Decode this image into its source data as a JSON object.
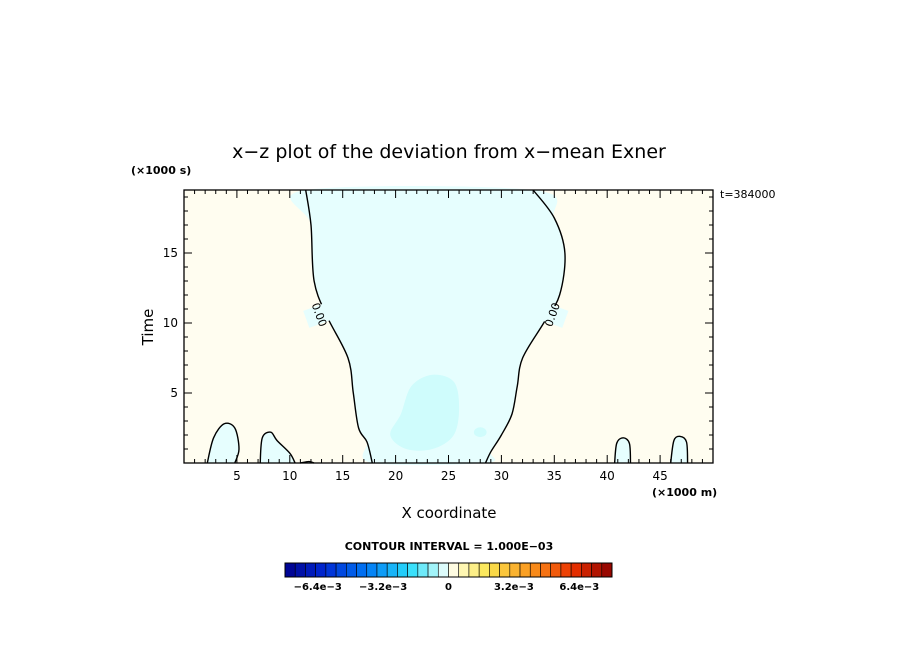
{
  "chart_data": {
    "type": "contour",
    "title": "x−z plot of the deviation from x−mean Exner",
    "xlabel": "X coordinate",
    "ylabel": "Time",
    "x_unit": "(×1000 m)",
    "y_unit": "(×1000 s)",
    "time_label": "t=384000",
    "xlim": [
      0,
      50
    ],
    "ylim": [
      0,
      19.5
    ],
    "x_ticks": [
      "5",
      "10",
      "15",
      "20",
      "25",
      "30",
      "35",
      "40",
      "45"
    ],
    "y_ticks": [
      "5",
      "10",
      "15"
    ],
    "contour_label": "0.00",
    "contour_interval_label": "CONTOUR INTERVAL = 1.000E−03",
    "colorbar": {
      "min": -0.008,
      "max": 0.008,
      "levels": 32,
      "tick_labels": [
        "−6.4e−3",
        "−3.2e−3",
        "0",
        "3.2e−3",
        "6.4e−3"
      ],
      "tick_values": [
        -0.0064,
        -0.0032,
        0,
        0.0032,
        0.0064
      ]
    },
    "colors": {
      "positive_fill": "#fffdf0",
      "negative_fill": "#e6fefe",
      "negative_core": "#cffcfc"
    },
    "zero_contour_left": [
      [
        11.5,
        19.5
      ],
      [
        12,
        17
      ],
      [
        12.3,
        13
      ],
      [
        13.5,
        10.5
      ],
      [
        15.5,
        7.5
      ],
      [
        16,
        5
      ],
      [
        16.5,
        2.5
      ],
      [
        17.3,
        1.5
      ],
      [
        17.8,
        0
      ]
    ],
    "zero_contour_right": [
      [
        33,
        19.5
      ],
      [
        35,
        17.5
      ],
      [
        36,
        15
      ],
      [
        35.5,
        12
      ],
      [
        34,
        10
      ],
      [
        32,
        7.5
      ],
      [
        31.5,
        5.5
      ],
      [
        31,
        3.5
      ],
      [
        30,
        2
      ],
      [
        29,
        0.8
      ],
      [
        28.5,
        0
      ]
    ],
    "negative_core": [
      [
        20.5,
        3.5
      ],
      [
        21.5,
        5.5
      ],
      [
        23.5,
        6.3
      ],
      [
        25.5,
        5.8
      ],
      [
        26,
        4
      ],
      [
        25.5,
        2
      ],
      [
        23.5,
        1
      ],
      [
        21,
        1
      ],
      [
        19.5,
        2
      ]
    ],
    "negative_core_small": {
      "x": 28,
      "y": 2.2,
      "rx": 0.6,
      "ry": 0.35
    },
    "small_blobs": [
      [
        [
          2.2,
          0
        ],
        [
          2.8,
          1.8
        ],
        [
          3.8,
          2.8
        ],
        [
          4.8,
          2.5
        ],
        [
          5.2,
          1
        ],
        [
          4.8,
          0
        ]
      ],
      [
        [
          7.2,
          0
        ],
        [
          7.4,
          1.8
        ],
        [
          8.2,
          2.2
        ],
        [
          8.8,
          1.6
        ],
        [
          10,
          0.7
        ],
        [
          10.5,
          0
        ]
      ],
      [
        [
          11,
          0
        ],
        [
          11.8,
          0.1
        ],
        [
          12.3,
          0
        ]
      ],
      [
        [
          40.7,
          0
        ],
        [
          40.9,
          1.4
        ],
        [
          41.5,
          1.8
        ],
        [
          42.1,
          1.4
        ],
        [
          42.2,
          0
        ]
      ],
      [
        [
          46,
          0
        ],
        [
          46.3,
          1.6
        ],
        [
          46.9,
          1.9
        ],
        [
          47.5,
          1.5
        ],
        [
          47.6,
          0
        ]
      ]
    ]
  }
}
